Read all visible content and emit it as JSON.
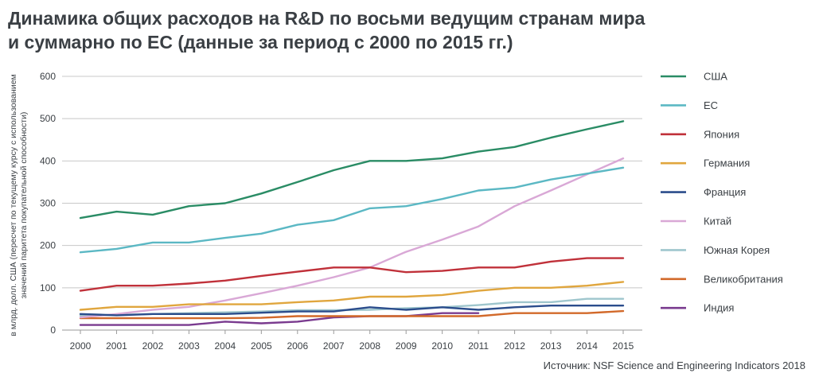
{
  "title": {
    "line1": "Динамика общих расходов на R&D по восьми ведущим странам мира",
    "line2": "и суммарно по ЕС (данные за период с 2000 по 2015 гг.)"
  },
  "source": "Источник: NSF Science and Engineering Indicators 2018",
  "chart_data": {
    "type": "line",
    "title": "Динамика общих расходов на R&D по восьми ведущим странам мира и суммарно по ЕС (данные за период с 2000 по 2015 гг.)",
    "ylabel_lines": [
      "в млрд. долл. США (пересчет по текущему курсу с использованием",
      "значений паритета покупательной способности)"
    ],
    "xlabel": "",
    "ylim": [
      0,
      600
    ],
    "yticks": [
      0,
      100,
      200,
      300,
      400,
      500,
      600
    ],
    "grid": true,
    "legend_position": "right",
    "x": [
      "2000",
      "2001",
      "2002",
      "2003",
      "2004",
      "2005",
      "2006",
      "2007",
      "2008",
      "2009",
      "2010",
      "2011",
      "2012",
      "2013",
      "2014",
      "2015"
    ],
    "series": [
      {
        "name": "США",
        "color": "#2a8c65",
        "values": [
          265,
          280,
          273,
          293,
          300,
          323,
          350,
          378,
          400,
          400,
          406,
          422,
          433,
          455,
          475,
          494
        ]
      },
      {
        "name": "ЕС",
        "color": "#5bb8c4",
        "values": [
          184,
          192,
          207,
          207,
          218,
          228,
          249,
          260,
          288,
          293,
          310,
          330,
          337,
          356,
          370,
          384
        ]
      },
      {
        "name": "Япония",
        "color": "#c0313a",
        "values": [
          93,
          105,
          105,
          110,
          117,
          128,
          138,
          148,
          148,
          137,
          140,
          148,
          148,
          162,
          170,
          170
        ]
      },
      {
        "name": "Германия",
        "color": "#e0a63e",
        "values": [
          48,
          55,
          55,
          61,
          61,
          61,
          66,
          70,
          79,
          79,
          83,
          93,
          100,
          100,
          105,
          114
        ]
      },
      {
        "name": "Франция",
        "color": "#2b4d8c",
        "values": [
          38,
          35,
          38,
          38,
          38,
          41,
          44,
          44,
          54,
          48,
          54,
          48,
          54,
          58,
          58,
          58
        ]
      },
      {
        "name": "Китай",
        "color": "#d9a8d6",
        "values": [
          30,
          38,
          48,
          55,
          70,
          87,
          105,
          125,
          148,
          185,
          214,
          245,
          293,
          330,
          368,
          406
        ]
      },
      {
        "name": "Южная Корея",
        "color": "#9fc6cd",
        "values": [
          34,
          36,
          38,
          40,
          42,
          44,
          47,
          47,
          48,
          52,
          54,
          59,
          66,
          66,
          74,
          74
        ]
      },
      {
        "name": "Великобритания",
        "color": "#d2692a",
        "values": [
          28,
          28,
          28,
          28,
          28,
          29,
          33,
          33,
          33,
          33,
          33,
          33,
          40,
          40,
          40,
          45
        ]
      },
      {
        "name": "Индия",
        "color": "#7a3b8f",
        "values": [
          12,
          12,
          12,
          12,
          20,
          16,
          20,
          30,
          33,
          33,
          40,
          40,
          null,
          null,
          null,
          null
        ]
      }
    ]
  }
}
